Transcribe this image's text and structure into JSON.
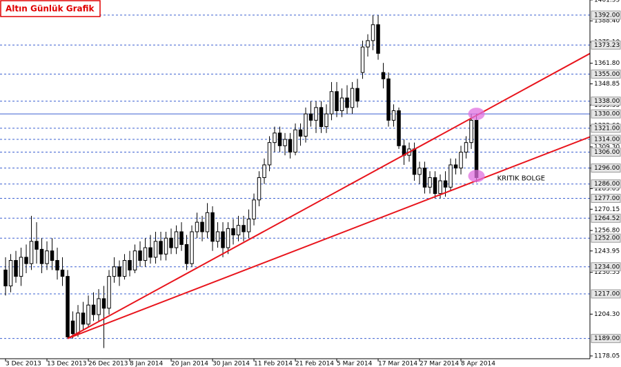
{
  "chart_data": {
    "type": "candlestick",
    "title": "Altın Günlük Grafik",
    "categories": [
      "3 Dec 2013",
      null,
      null,
      null,
      null,
      null,
      null,
      null,
      "13 Dec 2013",
      null,
      null,
      null,
      null,
      null,
      null,
      null,
      "26 Dec 2013",
      null,
      null,
      null,
      null,
      null,
      null,
      null,
      "8 Jan 2014",
      null,
      null,
      null,
      null,
      null,
      null,
      null,
      "20 Jan 2014",
      null,
      null,
      null,
      null,
      null,
      null,
      null,
      "30 Jan 2014",
      null,
      null,
      null,
      null,
      null,
      null,
      null,
      "11 Feb 2014",
      null,
      null,
      null,
      null,
      null,
      null,
      null,
      "21 Feb 2014",
      null,
      null,
      null,
      null,
      null,
      null,
      null,
      "5 Mar 2014",
      null,
      null,
      null,
      null,
      null,
      null,
      null,
      "17 Mar 2014",
      null,
      null,
      null,
      null,
      null,
      null,
      null,
      "27 Mar 2014",
      null,
      null,
      null,
      null,
      null,
      null,
      null,
      "8 Apr 2014",
      null,
      null,
      null
    ],
    "open": [
      1232,
      1222,
      1238,
      1228,
      1240,
      1236,
      1250,
      1245,
      1236,
      1244,
      1238,
      1232,
      1228,
      1200,
      1192,
      1205,
      1198,
      1210,
      1204,
      1214,
      1208,
      1228,
      1234,
      1228,
      1238,
      1232,
      1244,
      1238,
      1246,
      1240,
      1250,
      1242,
      1252,
      1246,
      1256,
      1248,
      1236,
      1256,
      1262,
      1256,
      1268,
      1250,
      1256,
      1246,
      1258,
      1254,
      1260,
      1256,
      1264,
      1276,
      1290,
      1298,
      1312,
      1318,
      1310,
      1314,
      1306,
      1320,
      1316,
      1330,
      1326,
      1334,
      1322,
      1330,
      1344,
      1332,
      1340,
      1334,
      1346,
      1356,
      1372,
      1376,
      1386,
      1356,
      1352,
      1326,
      1332,
      1310,
      1304,
      1308,
      1292,
      1296,
      1284,
      1290,
      1280,
      1288,
      1284,
      1298,
      1296,
      1306,
      1312,
      1326
    ],
    "high": [
      1240,
      1242,
      1244,
      1246,
      1248,
      1266,
      1262,
      1252,
      1250,
      1252,
      1246,
      1240,
      1232,
      1206,
      1210,
      1212,
      1216,
      1218,
      1220,
      1222,
      1232,
      1240,
      1238,
      1242,
      1244,
      1248,
      1250,
      1252,
      1254,
      1256,
      1256,
      1256,
      1258,
      1260,
      1262,
      1254,
      1260,
      1268,
      1266,
      1274,
      1272,
      1262,
      1262,
      1262,
      1264,
      1266,
      1266,
      1270,
      1280,
      1294,
      1302,
      1316,
      1322,
      1322,
      1318,
      1318,
      1324,
      1324,
      1334,
      1338,
      1338,
      1338,
      1336,
      1350,
      1350,
      1346,
      1348,
      1350,
      1352,
      1376,
      1380,
      1392,
      1392,
      1362,
      1356,
      1336,
      1334,
      1314,
      1312,
      1312,
      1300,
      1300,
      1294,
      1294,
      1292,
      1294,
      1302,
      1302,
      1310,
      1316,
      1330,
      1330
    ],
    "low": [
      1216,
      1218,
      1224,
      1222,
      1230,
      1232,
      1236,
      1230,
      1232,
      1232,
      1226,
      1222,
      1189,
      1189,
      1190,
      1194,
      1196,
      1200,
      1200,
      1183,
      1204,
      1224,
      1222,
      1226,
      1228,
      1230,
      1234,
      1234,
      1236,
      1236,
      1238,
      1238,
      1242,
      1242,
      1244,
      1232,
      1234,
      1252,
      1250,
      1252,
      1244,
      1246,
      1240,
      1242,
      1248,
      1250,
      1250,
      1252,
      1260,
      1272,
      1286,
      1294,
      1306,
      1306,
      1304,
      1302,
      1304,
      1310,
      1312,
      1322,
      1318,
      1318,
      1318,
      1326,
      1328,
      1328,
      1330,
      1330,
      1334,
      1352,
      1366,
      1370,
      1364,
      1346,
      1322,
      1322,
      1308,
      1298,
      1300,
      1288,
      1286,
      1280,
      1280,
      1277,
      1277,
      1278,
      1282,
      1292,
      1292,
      1302,
      1308,
      1287
    ],
    "close": [
      1222,
      1238,
      1228,
      1240,
      1236,
      1250,
      1245,
      1236,
      1244,
      1238,
      1232,
      1228,
      1190,
      1192,
      1205,
      1198,
      1210,
      1204,
      1214,
      1208,
      1228,
      1234,
      1228,
      1238,
      1232,
      1244,
      1238,
      1246,
      1240,
      1250,
      1242,
      1252,
      1246,
      1256,
      1248,
      1236,
      1256,
      1262,
      1256,
      1268,
      1250,
      1256,
      1246,
      1258,
      1254,
      1260,
      1256,
      1264,
      1276,
      1290,
      1298,
      1312,
      1318,
      1310,
      1314,
      1306,
      1320,
      1316,
      1330,
      1326,
      1334,
      1322,
      1330,
      1344,
      1332,
      1340,
      1334,
      1346,
      1338,
      1372,
      1376,
      1386,
      1368,
      1352,
      1326,
      1332,
      1310,
      1304,
      1308,
      1292,
      1296,
      1284,
      1290,
      1280,
      1288,
      1284,
      1298,
      1296,
      1306,
      1312,
      1326,
      1290
    ],
    "up_color": "#ffffff",
    "down_color": "#000000",
    "wick_color": "#000000",
    "xlim": [
      -1.07,
      112.93
    ],
    "ylim": [
      1176.3,
      1401.5
    ],
    "yticks": [
      1401.55,
      {
        "value": 1388.4,
        "label": "1388.40"
      },
      {
        "value": 1375.1,
        "label": "1375.10"
      },
      {
        "value": 1361.8,
        "label": "1361.80"
      },
      1348.85,
      1335.55,
      {
        "value": 1322.6,
        "label": "1322.60"
      },
      {
        "value": 1309.3,
        "label": "1309.30"
      },
      1295.95,
      1283.05,
      1270.15,
      {
        "value": 1256.8,
        "label": "1256.80"
      },
      1243.95,
      1230.55,
      {
        "value": 1204.3,
        "label": "1204.30"
      },
      1178.05
    ],
    "levels": [
      {
        "value": 1392,
        "label": "1392.00"
      },
      {
        "value": 1373.23,
        "label": "1373.23"
      },
      {
        "value": 1355,
        "label": "1355.00"
      },
      {
        "value": 1338,
        "label": "1338.00"
      },
      {
        "value": 1330,
        "label": "1330.00",
        "style": "solid"
      },
      {
        "value": 1321,
        "label": "1321.00"
      },
      {
        "value": 1314,
        "label": "1314.00"
      },
      {
        "value": 1306,
        "label": "1306.00"
      },
      {
        "value": 1296,
        "label": "1296.00"
      },
      {
        "value": 1286,
        "label": "1286.00"
      },
      {
        "value": 1277,
        "label": "1277.00"
      },
      {
        "value": 1264.52,
        "label": "1264.52"
      },
      {
        "value": 1252,
        "label": "1252.00"
      },
      {
        "value": 1234,
        "label": "1234.00"
      },
      {
        "value": 1217,
        "label": "1217.00"
      },
      {
        "value": 1189,
        "label": "1189.00"
      }
    ],
    "level_color": "#3a5fd0",
    "trendlines": [
      {
        "x": [
          12,
          113.6
        ],
        "y": [
          1189,
          1369.1
        ]
      },
      {
        "x": [
          12,
          113.6
        ],
        "y": [
          1189,
          1316.4
        ]
      }
    ],
    "trend_color": "#e8141c",
    "highlights": [
      {
        "x": 91,
        "y": 1330
      },
      {
        "x": 91,
        "y": 1291
      }
    ],
    "highlight_color": "#e070e0",
    "annotation": {
      "text": "KRITIK BOLGE",
      "x": 95,
      "y": 1289.5
    },
    "grid": false
  }
}
